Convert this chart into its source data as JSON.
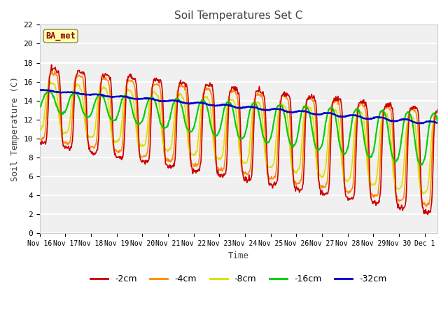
{
  "title": "Soil Temperatures Set C",
  "xlabel": "Time",
  "ylabel": "Soil Temperature (C)",
  "ylim": [
    0,
    22
  ],
  "background_color": "#ffffff",
  "plot_bg_color": "#f0f0f0",
  "label_box_text": "BA_met",
  "label_box_bg": "#ffffaa",
  "label_box_border": "#8b0000",
  "series": {
    "-2cm": {
      "color": "#cc0000",
      "lw": 1.2
    },
    "-4cm": {
      "color": "#ff8800",
      "lw": 1.2
    },
    "-8cm": {
      "color": "#dddd00",
      "lw": 1.2
    },
    "-16cm": {
      "color": "#00cc00",
      "lw": 1.5
    },
    "-32cm": {
      "color": "#0000cc",
      "lw": 1.8
    }
  },
  "xtick_labels": [
    "Nov 16",
    "Nov 17",
    "Nov 18",
    "Nov 19",
    "Nov 20",
    "Nov 21",
    "Nov 22",
    "Nov 23",
    "Nov 24",
    "Nov 25",
    "Nov 26",
    "Nov 27",
    "Nov 28",
    "Nov 29",
    "Nov 30",
    "Dec 1"
  ],
  "ytick_vals": [
    0,
    2,
    4,
    6,
    8,
    10,
    12,
    14,
    16,
    18,
    20,
    22
  ],
  "num_days": 15.5,
  "pts_per_day": 48
}
